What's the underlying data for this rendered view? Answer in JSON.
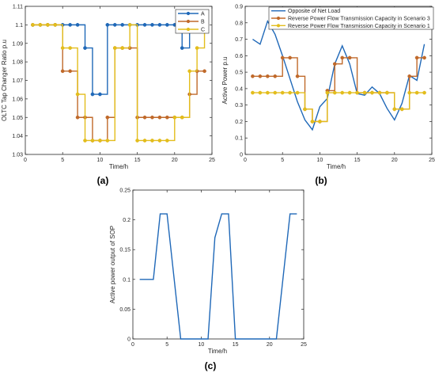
{
  "chart_data": [
    {
      "type": "line",
      "panel_label": "(a)",
      "xlabel": "Time/h",
      "ylabel": "OLTC Tap Changer Ratio p.u",
      "xlim": [
        0,
        25
      ],
      "ylim": [
        1.03,
        1.11
      ],
      "xticks": [
        "0",
        "5",
        "10",
        "15",
        "20",
        "25"
      ],
      "yticks": [
        "1.03",
        "1.04",
        "1.05",
        "1.06",
        "1.07",
        "1.08",
        "1.09",
        "1.1",
        "1.11"
      ],
      "step": true,
      "legend_position": "top-right",
      "x": [
        1,
        2,
        3,
        4,
        5,
        6,
        7,
        8,
        9,
        10,
        11,
        12,
        13,
        14,
        15,
        16,
        17,
        18,
        19,
        20,
        21,
        22,
        23,
        24
      ],
      "series": [
        {
          "name": "A",
          "color": "#1f68b8",
          "values": [
            1.1,
            1.1,
            1.1,
            1.1,
            1.1,
            1.1,
            1.1,
            1.0875,
            1.0625,
            1.0625,
            1.1,
            1.1,
            1.1,
            1.1,
            1.1,
            1.1,
            1.1,
            1.1,
            1.1,
            1.1,
            1.0875,
            1.1,
            1.1,
            1.1
          ]
        },
        {
          "name": "B",
          "color": "#c0692a",
          "values": [
            1.1,
            1.1,
            1.1,
            1.1,
            1.075,
            1.075,
            1.05,
            1.05,
            1.0375,
            1.0375,
            1.05,
            1.0875,
            1.0875,
            1.0875,
            1.05,
            1.05,
            1.05,
            1.05,
            1.05,
            1.05,
            1.05,
            1.0625,
            1.075,
            1.075
          ]
        },
        {
          "name": "C",
          "color": "#e3bd1c",
          "values": [
            1.1,
            1.1,
            1.1,
            1.1,
            1.0875,
            1.0875,
            1.0625,
            1.0375,
            1.0375,
            1.0375,
            1.0375,
            1.0875,
            1.0875,
            1.1,
            1.0375,
            1.0375,
            1.0375,
            1.0375,
            1.0375,
            1.05,
            1.05,
            1.075,
            1.0875,
            1.1
          ]
        }
      ]
    },
    {
      "type": "line",
      "panel_label": "(b)",
      "xlabel": "Time/h",
      "ylabel": "Active Power p.u",
      "xlim": [
        0,
        25
      ],
      "ylim": [
        0,
        0.9
      ],
      "xticks": [
        "0",
        "5",
        "10",
        "15",
        "20",
        "25"
      ],
      "yticks": [
        "0",
        "0.1",
        "0.2",
        "0.3",
        "0.4",
        "0.5",
        "0.6",
        "0.7",
        "0.8",
        "0.9"
      ],
      "legend_position": "top-right",
      "x": [
        1,
        2,
        3,
        4,
        5,
        6,
        7,
        8,
        9,
        10,
        11,
        12,
        13,
        14,
        15,
        16,
        17,
        18,
        19,
        20,
        21,
        22,
        23,
        24
      ],
      "series": [
        {
          "name": "Opposite of Net Load",
          "color": "#1f68b8",
          "step": false,
          "markers": false,
          "values": [
            0.7,
            0.67,
            0.81,
            0.73,
            0.6,
            0.46,
            0.32,
            0.21,
            0.15,
            0.29,
            0.34,
            0.55,
            0.66,
            0.55,
            0.37,
            0.36,
            0.41,
            0.37,
            0.28,
            0.21,
            0.31,
            0.48,
            0.45,
            0.67
          ]
        },
        {
          "name": "Reverse Power Flow Transmission Capacity in Scenario 3",
          "color": "#c0692a",
          "step": true,
          "markers": true,
          "values": [
            0.475,
            0.475,
            0.475,
            0.475,
            0.5875,
            0.5875,
            0.475,
            0.275,
            0.2,
            0.2,
            0.3875,
            0.55,
            0.5875,
            0.5875,
            0.375,
            0.375,
            0.375,
            0.375,
            0.375,
            0.275,
            0.275,
            0.475,
            0.5875,
            0.5875
          ]
        },
        {
          "name": "Reverse Power Flow Transmission Capacity in Scenario 1",
          "color": "#e3bd1c",
          "step": true,
          "markers": true,
          "values": [
            0.375,
            0.375,
            0.375,
            0.375,
            0.375,
            0.375,
            0.375,
            0.275,
            0.2,
            0.2,
            0.375,
            0.375,
            0.375,
            0.375,
            0.375,
            0.375,
            0.375,
            0.375,
            0.375,
            0.275,
            0.275,
            0.375,
            0.375,
            0.375
          ]
        }
      ]
    },
    {
      "type": "line",
      "panel_label": "(c)",
      "xlabel": "Time/h",
      "ylabel": "Active power output of SOP",
      "xlim": [
        0,
        25
      ],
      "ylim": [
        0,
        0.25
      ],
      "xticks": [
        "0",
        "5",
        "10",
        "15",
        "20",
        "25"
      ],
      "yticks": [
        "0",
        "0.05",
        "0.1",
        "0.15",
        "0.2",
        "0.25"
      ],
      "series": [
        {
          "name": "",
          "color": "#1f68b8",
          "x": [
            1,
            3,
            4,
            5,
            7,
            11,
            12,
            13,
            14,
            15,
            21,
            23,
            24
          ],
          "values": [
            0.1,
            0.1,
            0.21,
            0.21,
            0,
            0,
            0.17,
            0.21,
            0.21,
            0,
            0,
            0.21,
            0.21
          ]
        }
      ]
    }
  ]
}
